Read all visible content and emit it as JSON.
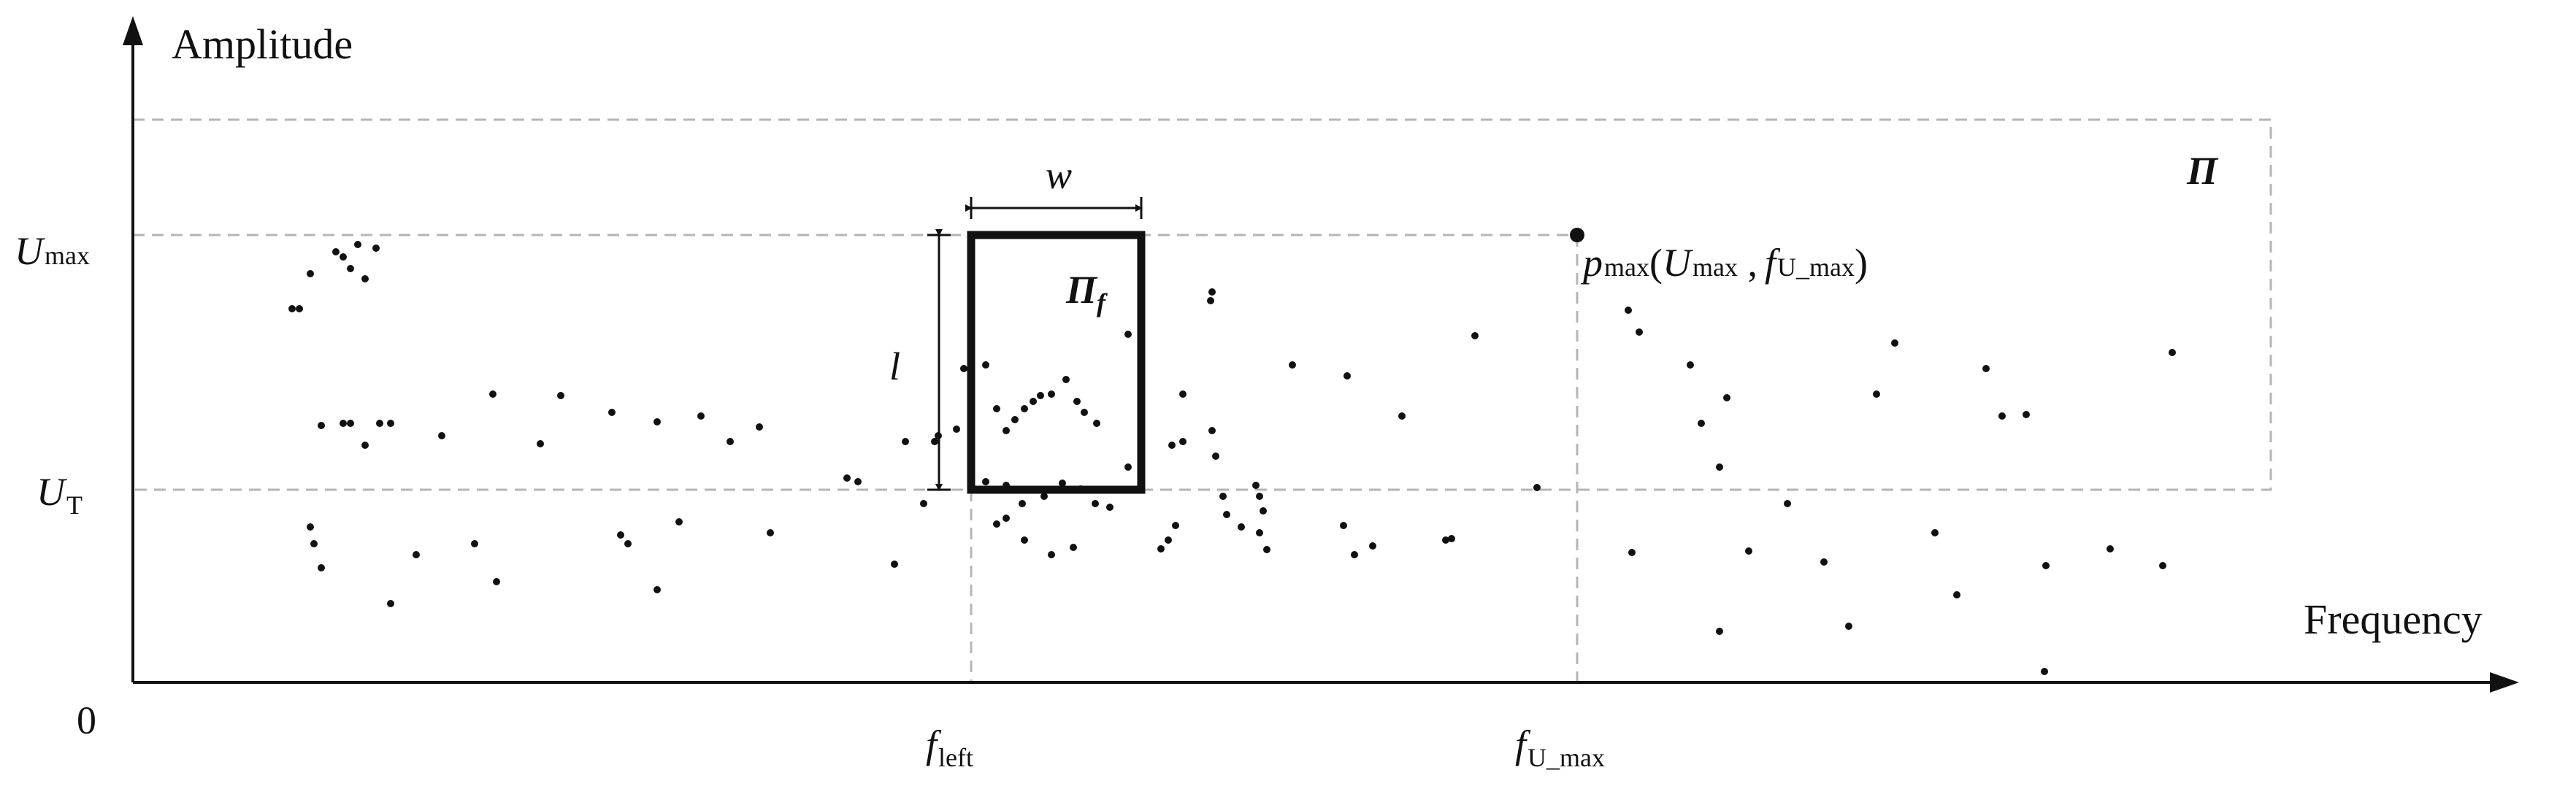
{
  "axes": {
    "y_title": "Amplitude",
    "x_title": "Frequency",
    "origin": "0"
  },
  "y_labels": {
    "umax": {
      "main": "U",
      "sub": "max"
    },
    "ut": {
      "main": "U",
      "sub": "T"
    }
  },
  "x_labels": {
    "fleft": {
      "main": "f",
      "sub": "left"
    },
    "fumax": {
      "main": "f",
      "sub": "U_max"
    }
  },
  "region_pi": {
    "label": "Π"
  },
  "window": {
    "label_main": "Π",
    "label_sub": "f",
    "width_label": "w",
    "height_label": "l"
  },
  "peak_point": {
    "p": "p",
    "p_sub": "max",
    "open": "(",
    "u": "U",
    "u_sub": "max",
    "comma": " ,",
    "f": "f",
    "f_sub": "U_max",
    "close": ")"
  },
  "colors": {
    "ink": "#111111",
    "dashed": "#b5b5b5"
  }
}
